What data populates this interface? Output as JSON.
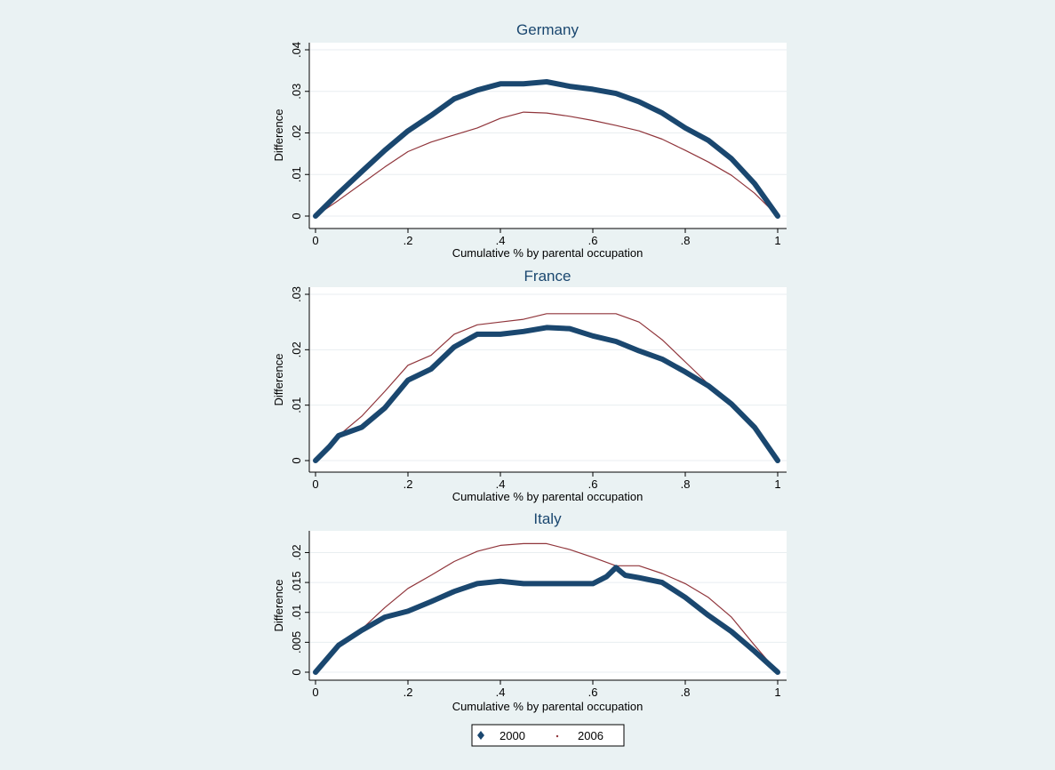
{
  "legend": {
    "items": [
      {
        "label": "2000",
        "color": "#1a476f",
        "marker": "diamond"
      },
      {
        "label": "2006",
        "color": "#90353b",
        "marker": "dot"
      }
    ]
  },
  "chart_data": [
    {
      "type": "line",
      "title": "Germany",
      "xlabel": "Cumulative % by parental occupation",
      "ylabel": "Difference",
      "xlim": [
        0,
        1
      ],
      "ylim": [
        0,
        0.04
      ],
      "xticks": [
        0,
        0.2,
        0.4,
        0.6,
        0.8,
        1
      ],
      "xtick_labels": [
        "0",
        ".2",
        ".4",
        ".6",
        ".8",
        "1"
      ],
      "yticks": [
        0,
        0.01,
        0.02,
        0.03,
        0.04
      ],
      "ytick_labels": [
        "0",
        ".01",
        ".02",
        ".03",
        ".04"
      ],
      "grid": true,
      "series": [
        {
          "name": "2000",
          "x": [
            0,
            0.05,
            0.1,
            0.15,
            0.2,
            0.25,
            0.3,
            0.35,
            0.4,
            0.45,
            0.5,
            0.55,
            0.6,
            0.65,
            0.7,
            0.75,
            0.8,
            0.85,
            0.9,
            0.95,
            1
          ],
          "values": [
            0,
            0.0055,
            0.0107,
            0.0158,
            0.0205,
            0.0242,
            0.0282,
            0.0303,
            0.0318,
            0.0318,
            0.0323,
            0.0312,
            0.0305,
            0.0295,
            0.0275,
            0.0248,
            0.0212,
            0.0182,
            0.0138,
            0.0078,
            0
          ]
        },
        {
          "name": "2006",
          "x": [
            0,
            0.05,
            0.1,
            0.15,
            0.2,
            0.25,
            0.3,
            0.35,
            0.4,
            0.45,
            0.5,
            0.55,
            0.6,
            0.65,
            0.7,
            0.75,
            0.8,
            0.85,
            0.9,
            0.95,
            1
          ],
          "values": [
            0,
            0.0038,
            0.0078,
            0.0118,
            0.0155,
            0.0178,
            0.0195,
            0.0212,
            0.0235,
            0.025,
            0.0248,
            0.024,
            0.023,
            0.0218,
            0.0205,
            0.0185,
            0.0158,
            0.013,
            0.0098,
            0.0055,
            0
          ]
        }
      ]
    },
    {
      "type": "line",
      "title": "France",
      "xlabel": "Cumulative % by parental occupation",
      "ylabel": "Difference",
      "xlim": [
        0,
        1
      ],
      "ylim": [
        0,
        0.03
      ],
      "xticks": [
        0,
        0.2,
        0.4,
        0.6,
        0.8,
        1
      ],
      "xtick_labels": [
        "0",
        ".2",
        ".4",
        ".6",
        ".8",
        "1"
      ],
      "yticks": [
        0,
        0.01,
        0.02,
        0.03
      ],
      "ytick_labels": [
        "0",
        ".01",
        ".02",
        ".03"
      ],
      "grid": true,
      "series": [
        {
          "name": "2000",
          "x": [
            0,
            0.03,
            0.05,
            0.1,
            0.15,
            0.2,
            0.25,
            0.3,
            0.35,
            0.4,
            0.45,
            0.5,
            0.55,
            0.6,
            0.65,
            0.7,
            0.75,
            0.8,
            0.85,
            0.9,
            0.95,
            1
          ],
          "values": [
            0,
            0.0025,
            0.0045,
            0.006,
            0.0095,
            0.0145,
            0.0165,
            0.0205,
            0.0228,
            0.0228,
            0.0233,
            0.024,
            0.0238,
            0.0225,
            0.0215,
            0.0198,
            0.0183,
            0.016,
            0.0135,
            0.0102,
            0.006,
            0
          ]
        },
        {
          "name": "2006",
          "x": [
            0,
            0.03,
            0.05,
            0.1,
            0.15,
            0.2,
            0.25,
            0.3,
            0.35,
            0.4,
            0.45,
            0.5,
            0.55,
            0.6,
            0.65,
            0.7,
            0.75,
            0.8,
            0.85,
            0.9,
            0.95,
            1
          ],
          "values": [
            0,
            0.0025,
            0.0045,
            0.008,
            0.0125,
            0.0172,
            0.019,
            0.0228,
            0.0245,
            0.025,
            0.0255,
            0.0265,
            0.0265,
            0.0265,
            0.0265,
            0.025,
            0.0218,
            0.0178,
            0.0138,
            0.0102,
            0.0055,
            0
          ]
        }
      ]
    },
    {
      "type": "line",
      "title": "Italy",
      "xlabel": "Cumulative % by parental occupation",
      "ylabel": "Difference",
      "xlim": [
        0,
        1
      ],
      "ylim": [
        0,
        0.022
      ],
      "xticks": [
        0,
        0.2,
        0.4,
        0.6,
        0.8,
        1
      ],
      "xtick_labels": [
        "0",
        ".2",
        ".4",
        ".6",
        ".8",
        "1"
      ],
      "yticks": [
        0,
        0.005,
        0.01,
        0.015,
        0.02
      ],
      "ytick_labels": [
        "0",
        ".005",
        ".01",
        ".015",
        ".02"
      ],
      "grid": true,
      "series": [
        {
          "name": "2000",
          "x": [
            0,
            0.05,
            0.1,
            0.15,
            0.2,
            0.25,
            0.3,
            0.35,
            0.4,
            0.45,
            0.5,
            0.55,
            0.6,
            0.63,
            0.65,
            0.67,
            0.7,
            0.75,
            0.8,
            0.85,
            0.9,
            0.95,
            1
          ],
          "values": [
            0,
            0.0045,
            0.007,
            0.0092,
            0.0102,
            0.0118,
            0.0135,
            0.0148,
            0.0152,
            0.0148,
            0.0148,
            0.0148,
            0.0148,
            0.016,
            0.0175,
            0.0162,
            0.0158,
            0.015,
            0.0125,
            0.0095,
            0.0068,
            0.0035,
            0
          ]
        },
        {
          "name": "2006",
          "x": [
            0,
            0.05,
            0.1,
            0.15,
            0.2,
            0.25,
            0.3,
            0.35,
            0.4,
            0.45,
            0.5,
            0.55,
            0.6,
            0.65,
            0.7,
            0.75,
            0.8,
            0.85,
            0.9,
            0.95,
            1
          ],
          "values": [
            0,
            0.0045,
            0.0072,
            0.0108,
            0.014,
            0.0162,
            0.0185,
            0.0202,
            0.0212,
            0.0215,
            0.0215,
            0.0205,
            0.0192,
            0.0178,
            0.0178,
            0.0165,
            0.0148,
            0.0125,
            0.0092,
            0.0045,
            0
          ]
        }
      ]
    }
  ]
}
